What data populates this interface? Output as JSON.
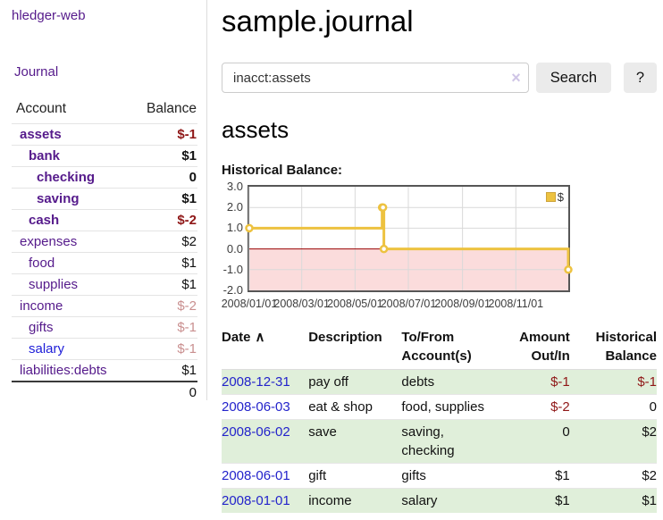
{
  "sidebar": {
    "brand": "hledger-web",
    "journal_link": "Journal",
    "account_header": "Account",
    "balance_header": "Balance",
    "accounts": [
      {
        "label": "assets",
        "balance": "$-1",
        "indent": 1,
        "bold": true,
        "balance_style": "negative"
      },
      {
        "label": "bank",
        "balance": "$1",
        "indent": 2,
        "bold": true,
        "balance_style": "positive"
      },
      {
        "label": "checking",
        "balance": "0",
        "indent": 3,
        "bold": true,
        "balance_style": "positive"
      },
      {
        "label": "saving",
        "balance": "$1",
        "indent": 3,
        "bold": true,
        "balance_style": "positive"
      },
      {
        "label": "cash",
        "balance": "$-2",
        "indent": 2,
        "bold": true,
        "balance_style": "negative"
      },
      {
        "label": "expenses",
        "balance": "$2",
        "indent": 1,
        "bold": false,
        "balance_style": "positive"
      },
      {
        "label": "food",
        "balance": "$1",
        "indent": 2,
        "bold": false,
        "balance_style": "positive"
      },
      {
        "label": "supplies",
        "balance": "$1",
        "indent": 2,
        "bold": false,
        "balance_style": "positive"
      },
      {
        "label": "income",
        "balance": "$-2",
        "indent": 1,
        "bold": false,
        "balance_style": "negative-dim"
      },
      {
        "label": "gifts",
        "balance": "$-1",
        "indent": 2,
        "bold": false,
        "balance_style": "negative-dim"
      },
      {
        "label": "salary",
        "balance": "$-1",
        "indent": 2,
        "bold": false,
        "balance_style": "negative-dim",
        "link_style": "blue"
      },
      {
        "label": "liabilities:debts",
        "balance": "$1",
        "indent": 1,
        "bold": false,
        "balance_style": "positive"
      }
    ],
    "total": "0"
  },
  "header": {
    "title": "sample.journal"
  },
  "search": {
    "value": "inacct:assets",
    "clear_icon": "×",
    "button_label": "Search",
    "help_label": "?"
  },
  "account_page": {
    "title": "assets",
    "chart_label": "Historical Balance:"
  },
  "chart_data": {
    "type": "line",
    "step": true,
    "title": "Historical Balance:",
    "series": [
      {
        "name": "$",
        "color": "#edc240",
        "points": [
          [
            "2008-01-01",
            1
          ],
          [
            "2008-06-01",
            2
          ],
          [
            "2008-06-02",
            2
          ],
          [
            "2008-06-03",
            0
          ],
          [
            "2008-12-31",
            -1
          ]
        ]
      }
    ],
    "x_domain": [
      "2008-01-01",
      "2008-12-31"
    ],
    "ylim": [
      -2,
      3
    ],
    "y_ticks": [
      3.0,
      2.0,
      1.0,
      0.0,
      -1.0,
      -2.0
    ],
    "x_ticks": [
      "2008/01/01",
      "2008/03/01",
      "2008/05/01",
      "2008/07/01",
      "2008/09/01",
      "2008/11/01"
    ],
    "grid": true,
    "legend_position": "top-right",
    "negative_region_color": "#fbdcdc",
    "zero_line_color": "#990000",
    "grid_color": "#d9d9d9"
  },
  "register": {
    "columns": {
      "date": "Date",
      "sort_indicator": "∧",
      "description": "Description",
      "accounts": "To/From Account(s)",
      "amount": "Amount Out/In",
      "balance": "Historical Balance"
    },
    "rows": [
      {
        "date": "2008-12-31",
        "description": "pay off",
        "accounts": "debts",
        "amount": "$-1",
        "balance": "$-1",
        "amount_negative": true,
        "balance_negative": true,
        "shaded": true
      },
      {
        "date": "2008-06-03",
        "description": "eat & shop",
        "accounts": "food, supplies",
        "amount": "$-2",
        "balance": "0",
        "amount_negative": true,
        "balance_negative": false,
        "shaded": false
      },
      {
        "date": "2008-06-02",
        "description": "save",
        "accounts": "saving, checking",
        "amount": "0",
        "balance": "$2",
        "amount_negative": false,
        "balance_negative": false,
        "shaded": true
      },
      {
        "date": "2008-06-01",
        "description": "gift",
        "accounts": "gifts",
        "amount": "$1",
        "balance": "$2",
        "amount_negative": false,
        "balance_negative": false,
        "shaded": false
      },
      {
        "date": "2008-01-01",
        "description": "income",
        "accounts": "salary",
        "amount": "$1",
        "balance": "$1",
        "amount_negative": false,
        "balance_negative": false,
        "shaded": true
      }
    ]
  },
  "colors": {
    "accent_purple": "#551a8b",
    "link_blue": "#2323cb",
    "negative_red": "#8f1717",
    "negative_dim": "#c98f8f",
    "row_green": "#e0efda",
    "chart_line_yellow": "#edc240",
    "chart_negative_bg": "#fbdcdc",
    "chart_zero_line": "#990000"
  }
}
